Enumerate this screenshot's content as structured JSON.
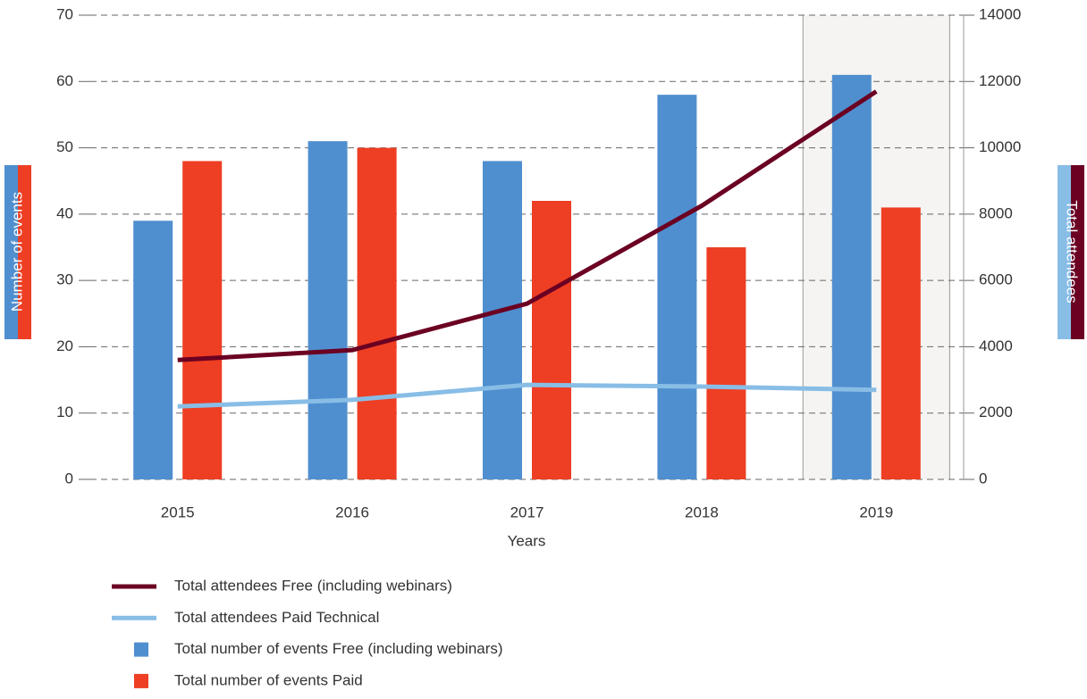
{
  "chart_data": {
    "type": "bar",
    "categories": [
      "2015",
      "2016",
      "2017",
      "2018",
      "2019"
    ],
    "highlight": "2019",
    "xlabel": "Years",
    "ylabel": "Number of events",
    "y2label": "Total attendees",
    "ylim": [
      0,
      70
    ],
    "yticks": [
      0,
      10,
      20,
      30,
      40,
      50,
      60,
      70
    ],
    "y2lim": [
      0,
      14000
    ],
    "y2ticks": [
      0,
      2000,
      4000,
      6000,
      8000,
      10000,
      12000,
      14000
    ],
    "grid": true,
    "series": [
      {
        "name": "Total attendees Free (including webinars)",
        "type": "line",
        "axis": "y2",
        "color": "#6b0022",
        "values": [
          3600,
          3900,
          5300,
          8250,
          11700
        ]
      },
      {
        "name": "Total attendees Paid Technical",
        "type": "line",
        "axis": "y2",
        "color": "#88bde6",
        "values": [
          2200,
          2400,
          2850,
          2800,
          2700
        ]
      },
      {
        "name": "Total number of events Free (including webinars)",
        "type": "bar",
        "color": "#4f8fcf",
        "values": [
          39,
          51,
          48,
          58,
          61
        ]
      },
      {
        "name": "Total number of events Paid",
        "type": "bar",
        "color": "#ee3e23",
        "values": [
          48,
          50,
          42,
          35,
          41
        ]
      }
    ]
  }
}
